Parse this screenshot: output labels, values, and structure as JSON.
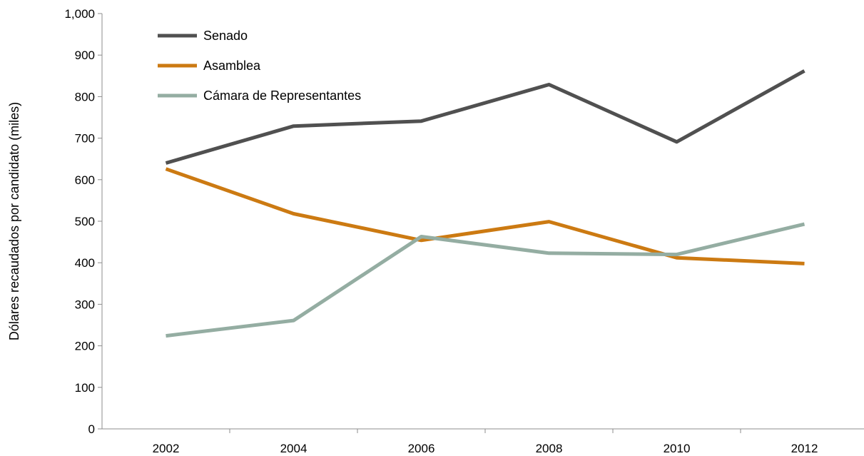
{
  "chart_data": {
    "type": "line",
    "title": "",
    "xlabel": "",
    "ylabel": "Dólares recaudados por candidato (miles)",
    "categories": [
      "2002",
      "2004",
      "2006",
      "2008",
      "2010",
      "2012"
    ],
    "y_ticks": [
      "0",
      "100",
      "200",
      "300",
      "400",
      "500",
      "600",
      "700",
      "800",
      "900",
      "1,000"
    ],
    "ylim": [
      0,
      1000
    ],
    "grid": false,
    "legend_position": "top-left",
    "series": [
      {
        "name": "Senado",
        "color": "#505050",
        "values": [
          640,
          729,
          741,
          829,
          691,
          862
        ]
      },
      {
        "name": "Asamblea",
        "color": "#CC7A12",
        "values": [
          626,
          518,
          454,
          499,
          412,
          398
        ]
      },
      {
        "name": "Cámara de Representantes",
        "color": "#94ADA2",
        "values": [
          224,
          261,
          463,
          423,
          420,
          493
        ]
      }
    ]
  }
}
